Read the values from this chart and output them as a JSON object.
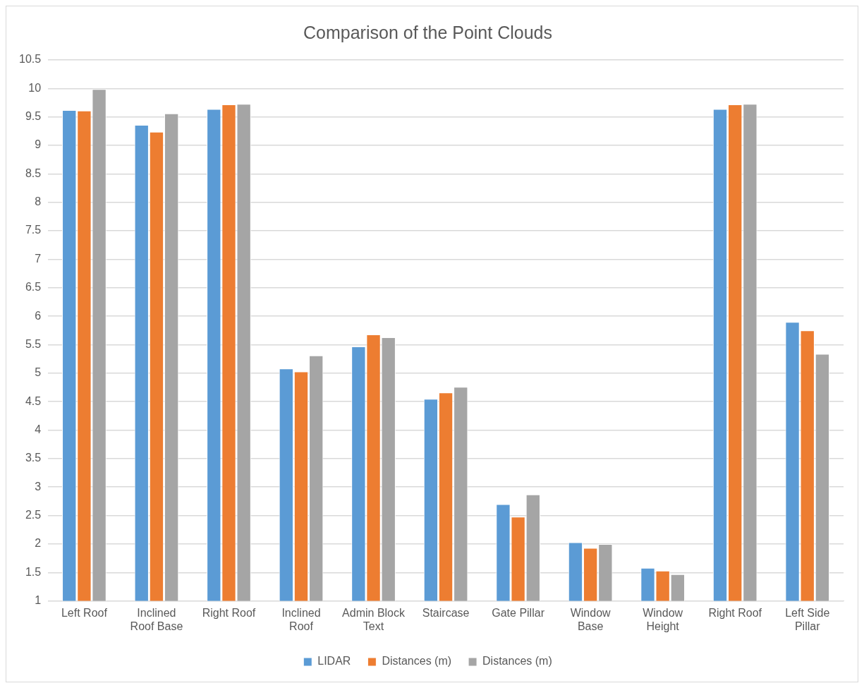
{
  "chart_data": {
    "type": "bar",
    "title": "Comparison of the Point Clouds",
    "categories": [
      "Left Roof",
      "Inclined Roof Base",
      "Right Roof",
      "Inclined Roof",
      "Admin Block Text",
      "Staircase",
      "Gate Pillar",
      "Window Base",
      "Window Height",
      "Right Roof",
      "Left Side Pillar"
    ],
    "series": [
      {
        "name": "LIDAR",
        "color": "#5b9bd5",
        "values": [
          9.62,
          9.36,
          9.64,
          5.08,
          5.47,
          4.55,
          2.7,
          2.03,
          1.58,
          9.64,
          5.9
        ]
      },
      {
        "name": "Distances (m)",
        "color": "#ed7d31",
        "values": [
          9.61,
          9.24,
          9.72,
          5.03,
          5.68,
          4.66,
          2.48,
          1.93,
          1.53,
          9.72,
          5.75
        ]
      },
      {
        "name": "Distances (m)",
        "color": "#a5a5a5",
        "values": [
          9.99,
          9.56,
          9.73,
          5.31,
          5.63,
          4.76,
          2.87,
          2.0,
          1.47,
          9.73,
          5.34
        ]
      }
    ],
    "ylim": [
      1,
      10.5
    ],
    "yticks": [
      1,
      {
        "value": 1.5,
        "label": "1.5"
      },
      2,
      {
        "value": 2.5,
        "label": "2.5"
      },
      3,
      {
        "value": 3.5,
        "label": "3.5"
      },
      4,
      {
        "value": 4.5,
        "label": "4.5"
      },
      5,
      {
        "value": 5.5,
        "label": "5.5"
      },
      6,
      {
        "value": 6.5,
        "label": "6.5"
      },
      7,
      {
        "value": 7.5,
        "label": "7.5"
      },
      8,
      {
        "value": 8.5,
        "label": "8.5"
      },
      9,
      {
        "value": 9.5,
        "label": "9.5"
      },
      10,
      {
        "value": 10.5,
        "label": "10.5"
      }
    ],
    "grid": "y",
    "legend": "bottom"
  }
}
